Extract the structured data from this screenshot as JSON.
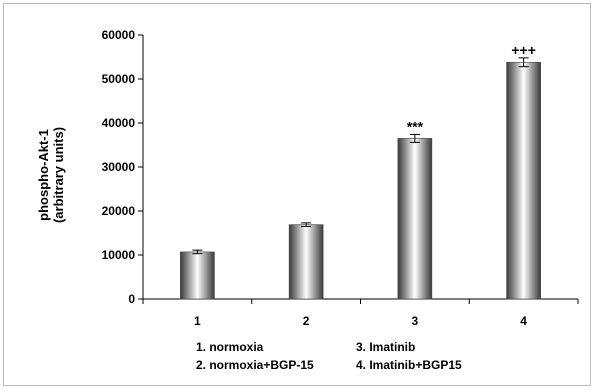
{
  "chart_data": {
    "type": "bar",
    "categories": [
      "1",
      "2",
      "3",
      "4"
    ],
    "values": [
      10700,
      16900,
      36500,
      53800
    ],
    "errors": [
      400,
      400,
      900,
      1000
    ],
    "annotations": [
      "",
      "",
      "***",
      "+++"
    ],
    "ylabel_lines": [
      "phospho-Akt-1",
      "(arbitrary units)"
    ],
    "xlabel": "",
    "title": "",
    "ylim": [
      0,
      60000
    ],
    "yticks": [
      0,
      10000,
      20000,
      30000,
      40000,
      50000,
      60000
    ],
    "legend_placement": "bottom",
    "legend": [
      "1. normoxia",
      "3. Imatinib",
      "2. normoxia+BGP-15",
      "4. Imatinib+BGP15"
    ],
    "grid": false
  }
}
